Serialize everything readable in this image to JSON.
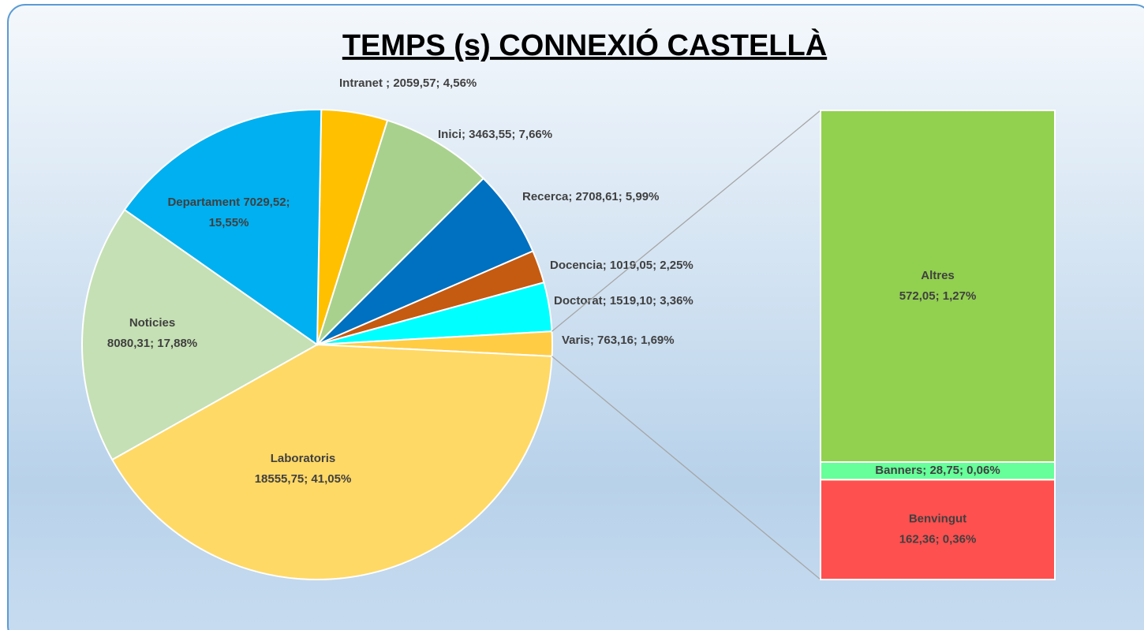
{
  "chart_data": {
    "type": "pie",
    "title": "TEMPS (s) CONNEXIÓ CASTELLÀ",
    "values": [
      2059.57,
      3463.55,
      2708.61,
      1019.05,
      1519.1,
      763.16,
      18555.75,
      8080.31,
      7029.52
    ],
    "value_labels": [
      "Intranet ; 2059,57; 4,56%",
      "Inici; 3463,55; 7,66%",
      "Recerca; 2708,61; 5,99%",
      "Docencia; 1019,05; 2,25%",
      "Doctorat; 1519,10; 3,36%",
      "Varis; 763,16; 1,69%",
      "Laboratoris\n18555,75; 41,05%",
      "Noticies\n8080,31; 17,88%",
      "Departament 7029,52;\n15,55%"
    ],
    "colors": [
      "#ffc000",
      "#a9d18e",
      "#0070c0",
      "#c55a11",
      "#00ffff",
      "#ffcc44",
      "#ffd966",
      "#c5e0b4",
      "#00b0f0"
    ],
    "split_slice": 5,
    "secondary": {
      "type": "bar",
      "values": [
        572.05,
        28.75,
        162.36
      ],
      "value_labels": [
        "Altres\n572,05; 1,27%",
        "Banners; 28,75; 0,06%",
        "Benvingut\n162,36; 0,36%"
      ],
      "colors": [
        "#92d050",
        "#66ff99",
        "#ff5050"
      ]
    }
  }
}
